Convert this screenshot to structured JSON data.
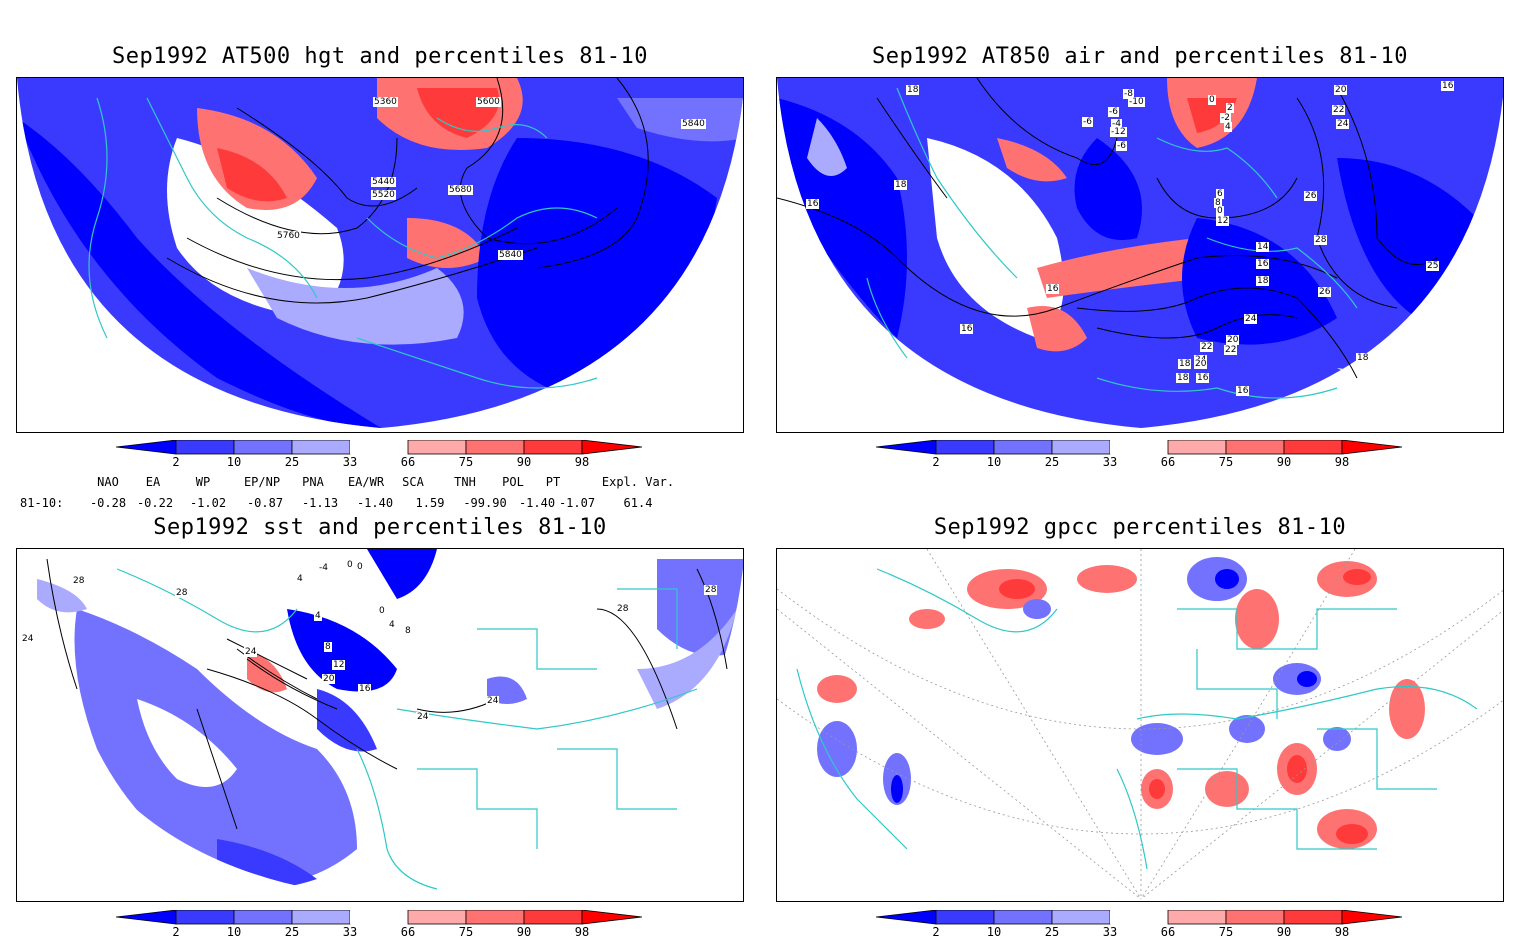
{
  "panels": [
    {
      "id": "hgt500",
      "title": "Sep1992 AT500 hgt and percentiles 81-10",
      "contour_labels": [
        "5360",
        "5600",
        "5840",
        "5440",
        "5520",
        "5680",
        "5760",
        "5840"
      ]
    },
    {
      "id": "air850",
      "title": "Sep1992 AT850 air and percentiles 81-10",
      "contour_labels": [
        "18",
        "-6",
        "-8",
        "-10",
        "-6",
        "0",
        "2",
        "-4",
        "-12",
        "-2",
        "4",
        "-6",
        "20",
        "22",
        "24",
        "16",
        "18",
        "16",
        "6",
        "8",
        "0",
        "12",
        "26",
        "28",
        "14",
        "16",
        "18",
        "26",
        "20",
        "22",
        "24",
        "16",
        "18",
        "16",
        "24",
        "22",
        "20",
        "18",
        "16",
        "16",
        "18",
        "25"
      ]
    },
    {
      "id": "sst",
      "title": "Sep1992 sst and percentiles 81-10",
      "contour_labels": [
        "-4",
        "0",
        "0",
        "4",
        "28",
        "24",
        "28",
        "4",
        "0",
        "4",
        "8",
        "24",
        "8",
        "12",
        "20",
        "16",
        "24",
        "24",
        "28",
        "28"
      ]
    },
    {
      "id": "gpcc",
      "title": "Sep1992 gpcc percentiles 81-10",
      "contour_labels": []
    }
  ],
  "colorbar": {
    "ticks": [
      "2",
      "10",
      "25",
      "33",
      "66",
      "75",
      "90",
      "98"
    ],
    "colors": {
      "c0": "#0000ff",
      "c1": "#3a3aff",
      "c2": "#7272ff",
      "c3": "#aaaaff",
      "white": "#ffffff",
      "w1": "#ffaaaa",
      "w2": "#ff7272",
      "w3": "#ff3a3a",
      "w4": "#ff0000"
    }
  },
  "indices": {
    "headers": [
      "NAO",
      "EA",
      "WP",
      "EP/NP",
      "PNA",
      "EA/WR",
      "SCA",
      "TNH",
      "POL",
      "PT",
      "Expl. Var."
    ],
    "row_label": "81-10:",
    "values": [
      "-0.28",
      "-0.22",
      "-1.02",
      "-0.87",
      "-1.13",
      "-1.40",
      "1.59",
      "-99.90",
      "-1.40",
      "-1.07",
      "61.4"
    ]
  },
  "colors": {
    "coast": "#30c8c8",
    "contour": "#000000"
  }
}
